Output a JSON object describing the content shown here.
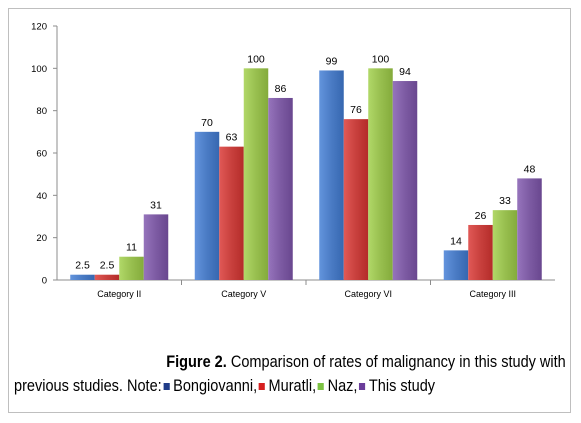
{
  "chart_data": {
    "type": "bar",
    "categories": [
      "Category II",
      "Category V",
      "Category VI",
      "Category III"
    ],
    "series": [
      {
        "name": "Bongiovanni",
        "color": "#4a7bc4",
        "values": [
          2.5,
          70,
          99,
          14
        ],
        "labels": [
          "2.5",
          "70",
          "99",
          "14"
        ]
      },
      {
        "name": "Muratli",
        "color": "#c8403d",
        "values": [
          2.5,
          63,
          76,
          26
        ],
        "labels": [
          "2.5",
          "63",
          "76",
          "26"
        ]
      },
      {
        "name": "Naz",
        "color": "#98bf4f",
        "values": [
          11,
          100,
          100,
          33
        ],
        "labels": [
          "11",
          "100",
          "100",
          "33"
        ]
      },
      {
        "name": "This study",
        "color": "#7d5ba3",
        "values": [
          31,
          86,
          94,
          48
        ],
        "labels": [
          "31",
          "86",
          "94",
          "48"
        ]
      }
    ],
    "ylim": [
      0,
      120
    ],
    "yticks": [
      "0",
      "20",
      "40",
      "60",
      "80",
      "100",
      "120"
    ],
    "grid": false,
    "legend": "caption"
  },
  "caption": {
    "figure_label": "Figure 2.",
    "text": "Comparison of rates of malignancy in this study with",
    "note_prefix": "previous studies. Note:",
    "legend": [
      {
        "name": "Bongiovanni,",
        "color": "#1f3c88"
      },
      {
        "name": "Muratli,",
        "color": "#d62020"
      },
      {
        "name": "Naz,",
        "color": "#7cc242"
      },
      {
        "name": "This study",
        "color": "#6a3d9a"
      }
    ]
  }
}
